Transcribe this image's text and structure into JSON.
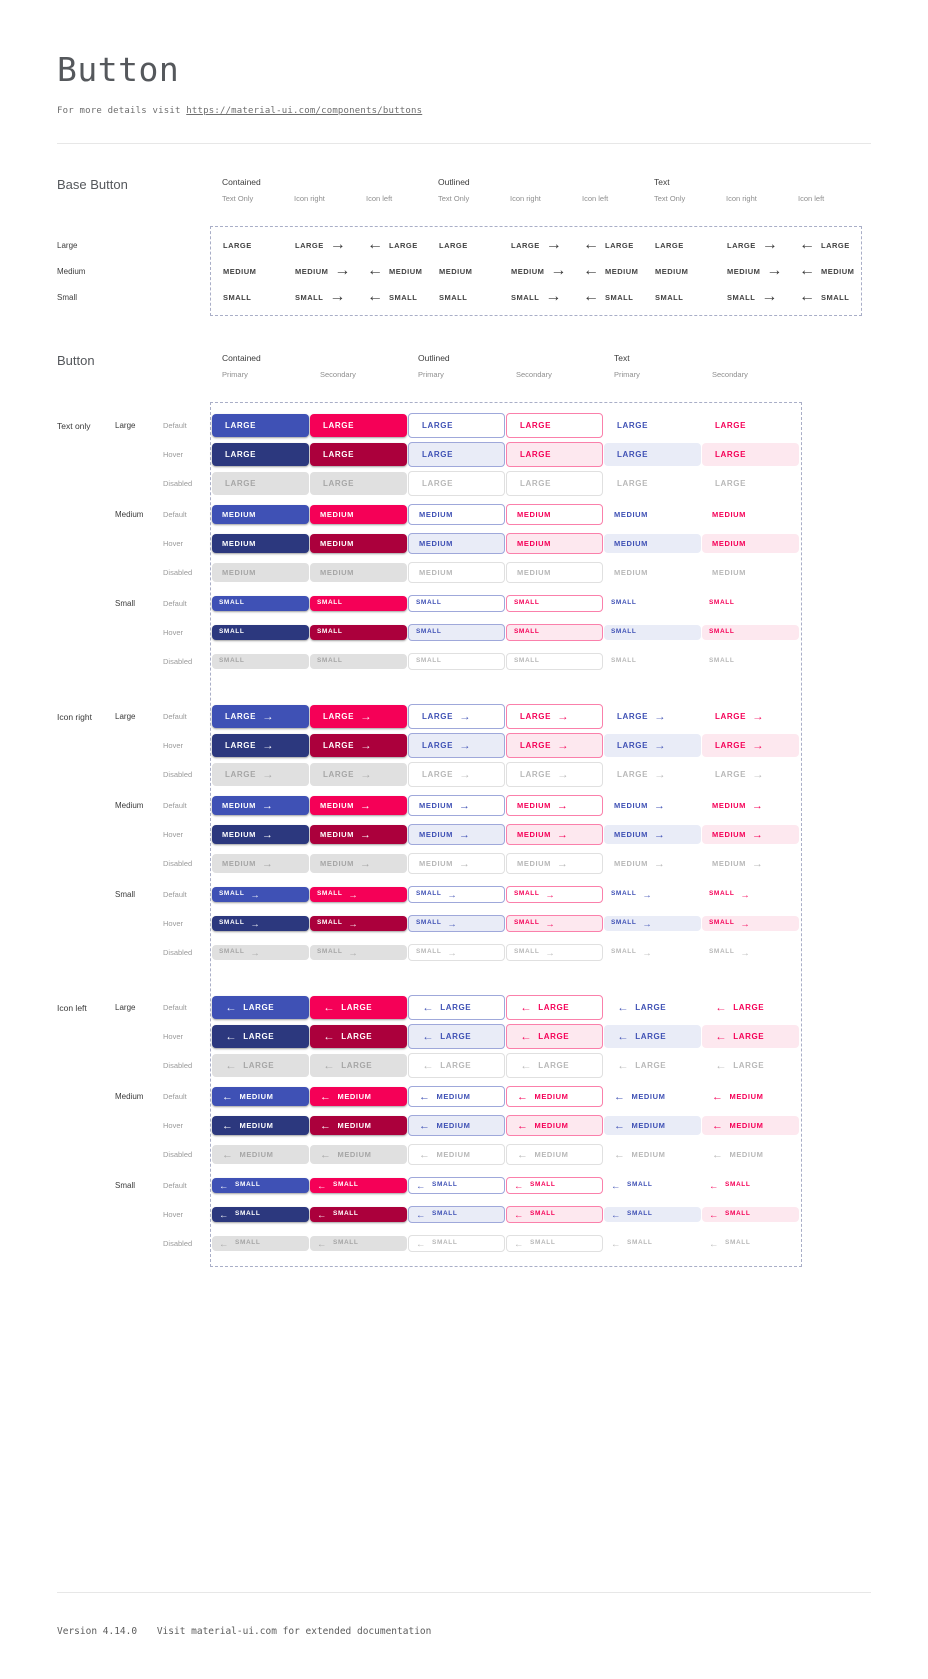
{
  "page": {
    "title": "Button",
    "subtitle_prefix": "For more details visit",
    "subtitle_link": "https://material-ui.com/components/buttons",
    "footer_version": "Version 4.14.0",
    "footer_note": "Visit material-ui.com for extended documentation"
  },
  "colors": {
    "primary": "#3f51b5",
    "primary_hover": "#2c387e",
    "primary_border": "#9fa8da",
    "primary_tint": "#e9ecf7",
    "secondary": "#f50057",
    "secondary_hover": "#ab003c",
    "secondary_border": "#fa80ab",
    "secondary_tint": "#fde8ef",
    "disabled_bg": "#e0e0e0",
    "disabled_text": "#a6a6a6",
    "text_disabled": "#b8b8b8"
  },
  "icons": {
    "right": "→",
    "left": "←"
  },
  "base_section": {
    "title": "Base Button",
    "group_headers": [
      "Contained",
      "Outlined",
      "Text"
    ],
    "variant_headers": [
      "Text Only",
      "Icon right",
      "Icon left"
    ],
    "variants": [
      "none",
      "right",
      "left"
    ],
    "sizes": [
      {
        "label": "Large",
        "text": "LARGE"
      },
      {
        "label": "Medium",
        "text": "MEDIUM"
      },
      {
        "label": "Small",
        "text": "SMALL"
      }
    ]
  },
  "button_section": {
    "title": "Button",
    "group_headers": [
      "Contained",
      "Outlined",
      "Text"
    ],
    "palette_headers": [
      "Primary",
      "Secondary"
    ],
    "columns": [
      {
        "variant": "contained",
        "palette": "primary"
      },
      {
        "variant": "contained",
        "palette": "secondary"
      },
      {
        "variant": "outlined",
        "palette": "primary"
      },
      {
        "variant": "outlined",
        "palette": "secondary"
      },
      {
        "variant": "text",
        "palette": "primary"
      },
      {
        "variant": "text",
        "palette": "secondary"
      }
    ],
    "icon_groups": [
      {
        "label": "Text only",
        "icon": "none"
      },
      {
        "label": "Icon right",
        "icon": "right"
      },
      {
        "label": "Icon left",
        "icon": "left"
      }
    ],
    "sizes": [
      {
        "label": "Large",
        "text": "LARGE"
      },
      {
        "label": "Medium",
        "text": "MEDIUM"
      },
      {
        "label": "Small",
        "text": "SMALL"
      }
    ],
    "states": [
      "Default",
      "Hover",
      "Disabled"
    ]
  }
}
